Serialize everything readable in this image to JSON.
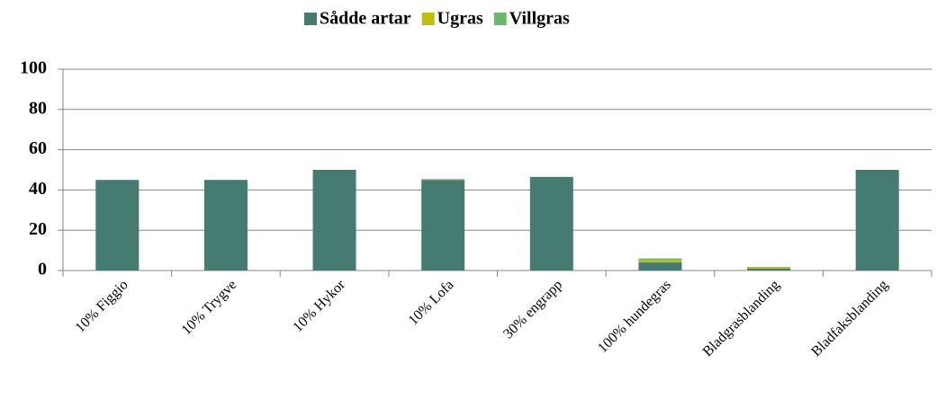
{
  "chart_data": {
    "type": "stacked_bar",
    "categories": [
      "10% Figgio",
      "10% Trygve",
      "10% Hykor",
      "10% Lofa",
      "30% engrapp",
      "100% hundegras",
      "Bladgrasblanding",
      "Bladfaksblanding"
    ],
    "series": [
      {
        "name": "Sådde artar",
        "color": "#457b70",
        "values": [
          45,
          45,
          50,
          45,
          46.5,
          4,
          1,
          50
        ]
      },
      {
        "name": "Ugras",
        "color": "#bfbf10",
        "values": [
          0,
          0,
          0,
          0.5,
          0,
          1,
          0.5,
          0
        ]
      },
      {
        "name": "Villgras",
        "color": "#6ab86a",
        "values": [
          0,
          0,
          0,
          0,
          0,
          1,
          0.3,
          0
        ]
      }
    ],
    "ylim": [
      0,
      100
    ],
    "yticks": [
      0,
      20,
      40,
      60,
      80,
      100
    ],
    "grid": true,
    "legend": "top"
  }
}
